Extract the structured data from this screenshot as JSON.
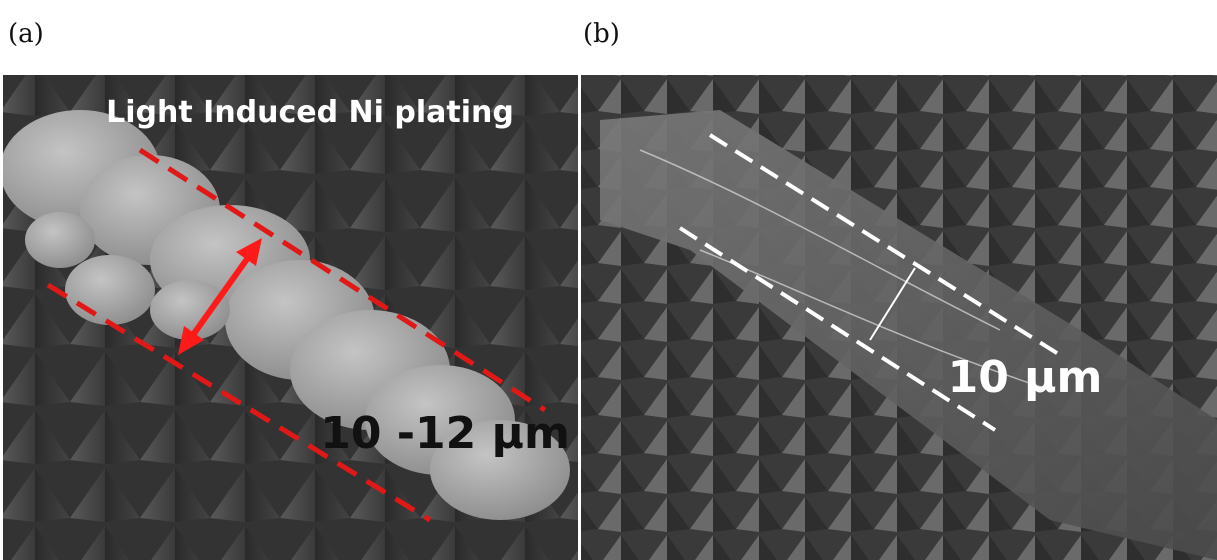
{
  "panels": [
    {
      "label": "(a)",
      "annotations": [
        "Light Induced Ni plating",
        "10 -12 μm"
      ]
    },
    {
      "label": "(b)",
      "annotations": [
        "10 μm"
      ]
    }
  ]
}
